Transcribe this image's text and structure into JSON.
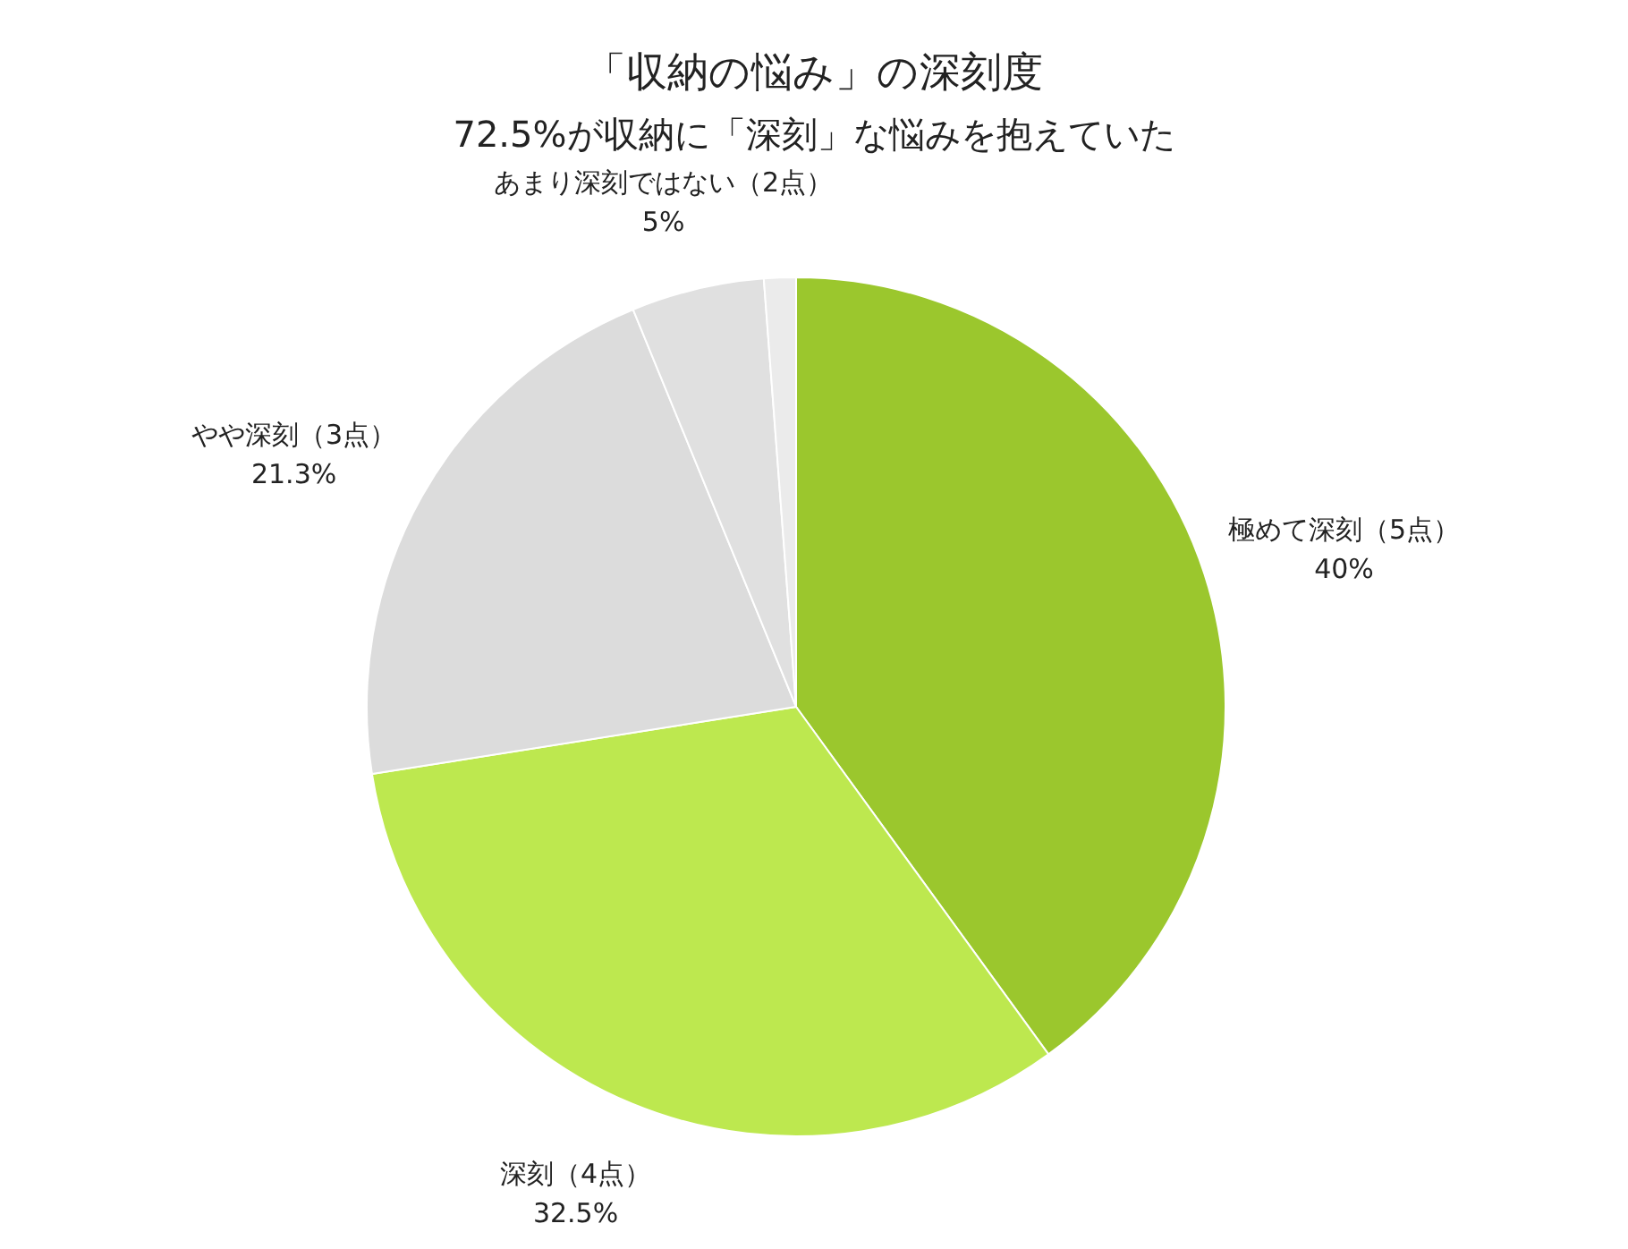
{
  "chart_data": {
    "type": "pie",
    "title": "「収納の悩み」の深刻度",
    "subtitle": "72.5%が収納に「深刻」な悩みを抱えていた",
    "categories": [
      "極めて深刻（5点）",
      "深刻（4点）",
      "やや深刻（3点）",
      "あまり深刻ではない（2点）",
      null
    ],
    "values": [
      40,
      32.5,
      21.3,
      5,
      1.2
    ],
    "value_labels": [
      "40%",
      "32.5%",
      "21.3%",
      "5%",
      null
    ],
    "colors": [
      "#9bc72d",
      "#bde84f",
      "#dcdcdc",
      "#e0e0e0",
      "#ebebeb"
    ]
  }
}
